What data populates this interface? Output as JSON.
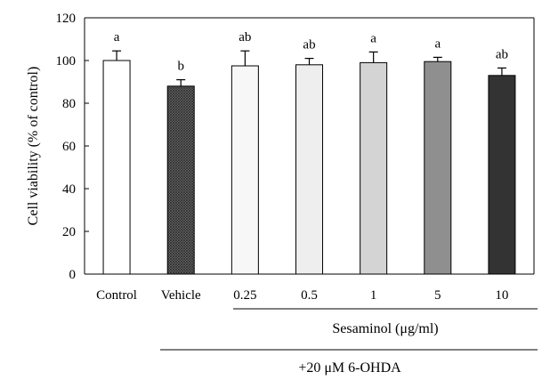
{
  "chart_data": {
    "type": "bar",
    "categories": [
      "Control",
      "Vehicle",
      "0.25",
      "0.5",
      "1",
      "5",
      "10"
    ],
    "values": [
      100,
      88,
      97.5,
      98,
      99,
      99.5,
      93
    ],
    "errors": [
      4.5,
      3,
      7,
      3,
      5,
      2,
      3.5
    ],
    "significance": [
      "a",
      "b",
      "ab",
      "ab",
      "a",
      "a",
      "ab"
    ],
    "bar_colors": [
      "#ffffff",
      "#5a5a5a",
      "#f7f7f7",
      "#eeeeee",
      "#d4d4d4",
      "#8f8f8f",
      "#333333"
    ],
    "bar_patterns": [
      "none",
      "crosshatch",
      "none",
      "none",
      "none",
      "none",
      "none"
    ],
    "ylabel": "Cell viability (% of control)",
    "xlabel": "",
    "ylim": [
      0,
      120
    ],
    "yticks": [
      0,
      20,
      40,
      60,
      80,
      100,
      120
    ],
    "grid": false,
    "group_labels": {
      "sesaminol": "Sesaminol (μg/ml)",
      "treatment": "+20 μM 6-OHDA"
    }
  }
}
